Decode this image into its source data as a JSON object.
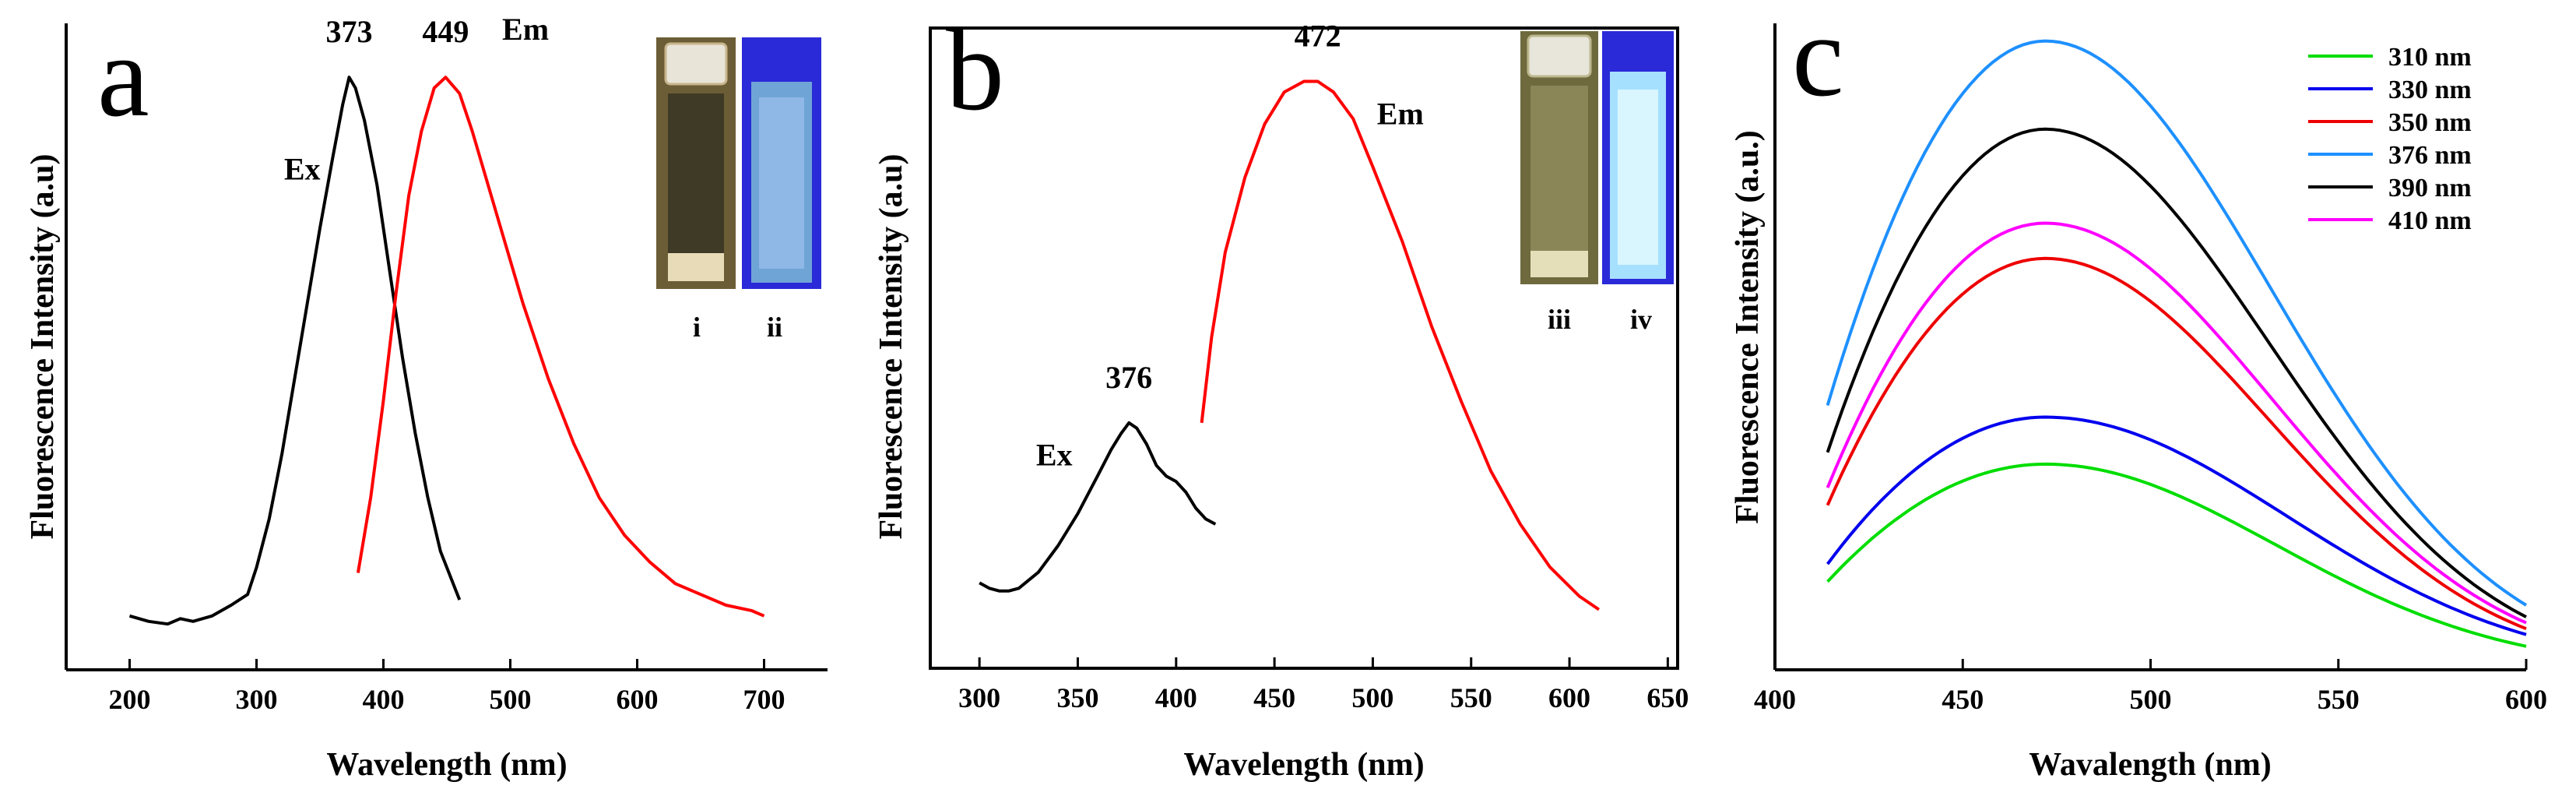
{
  "chart_data": [
    {
      "type": "line",
      "panel": "a",
      "xlabel": "Wavelength (nm)",
      "ylabel": "Fluorescence Intensity (a.u)",
      "xlim": [
        150,
        750
      ],
      "ylim": [
        -0.1,
        1.1
      ],
      "x_ticks": [
        200,
        300,
        400,
        500,
        600,
        700
      ],
      "y_ticks_shown": false,
      "series": [
        {
          "name": "Ex",
          "color": "#000000",
          "x": [
            200,
            215,
            230,
            240,
            250,
            265,
            280,
            293,
            300,
            310,
            320,
            330,
            340,
            350,
            360,
            368,
            373,
            378,
            385,
            395,
            405,
            415,
            425,
            435,
            445,
            455,
            460
          ],
          "y": [
            0.0,
            -0.01,
            -0.015,
            -0.005,
            -0.01,
            0.0,
            0.02,
            0.04,
            0.09,
            0.18,
            0.3,
            0.44,
            0.58,
            0.72,
            0.85,
            0.95,
            1.0,
            0.98,
            0.92,
            0.8,
            0.64,
            0.48,
            0.34,
            0.22,
            0.12,
            0.06,
            0.03
          ]
        },
        {
          "name": "Em",
          "color": "#ff0000",
          "x": [
            380,
            390,
            400,
            410,
            420,
            430,
            440,
            449,
            460,
            470,
            480,
            495,
            510,
            530,
            550,
            570,
            590,
            610,
            630,
            650,
            670,
            690,
            700
          ],
          "y": [
            0.08,
            0.22,
            0.4,
            0.6,
            0.78,
            0.9,
            0.98,
            1.0,
            0.97,
            0.9,
            0.82,
            0.7,
            0.58,
            0.44,
            0.32,
            0.22,
            0.15,
            0.1,
            0.06,
            0.04,
            0.02,
            0.01,
            0.0
          ]
        }
      ],
      "annotations": [
        {
          "text": "373",
          "x": 373,
          "y": 1.0
        },
        {
          "text": "449",
          "x": 449,
          "y": 1.0
        },
        {
          "text": "Ex",
          "x": 336,
          "y": 0.81
        },
        {
          "text": "Em",
          "x": 512,
          "y": 1.07
        }
      ],
      "inset": {
        "labels": [
          "i",
          "ii"
        ],
        "vial_colors": [
          "#c8b489",
          "#8fb8e6"
        ],
        "vial_bg": [
          "#6b5d35",
          "#2a2ad8"
        ]
      }
    },
    {
      "type": "line",
      "panel": "b",
      "xlabel": "Wavelength (nm)",
      "ylabel": "Fluorescence Intensity (a.u)",
      "xlim": [
        275,
        655
      ],
      "ylim": [
        -0.1,
        1.1
      ],
      "x_ticks": [
        300,
        350,
        400,
        450,
        500,
        550,
        600,
        650
      ],
      "y_ticks_shown": false,
      "series": [
        {
          "name": "Ex",
          "color": "#000000",
          "x": [
            300,
            305,
            310,
            315,
            320,
            330,
            340,
            350,
            360,
            367,
            372,
            376,
            380,
            385,
            390,
            395,
            400,
            405,
            410,
            415,
            420
          ],
          "y": [
            0.06,
            0.05,
            0.045,
            0.045,
            0.05,
            0.08,
            0.13,
            0.19,
            0.26,
            0.31,
            0.34,
            0.36,
            0.35,
            0.32,
            0.28,
            0.26,
            0.25,
            0.23,
            0.2,
            0.18,
            0.17
          ]
        },
        {
          "name": "Em",
          "color": "#ff0000",
          "x": [
            413,
            418,
            425,
            435,
            445,
            455,
            465,
            472,
            480,
            490,
            500,
            515,
            530,
            545,
            560,
            575,
            590,
            605,
            615
          ],
          "y": [
            0.36,
            0.52,
            0.68,
            0.82,
            0.92,
            0.98,
            1.0,
            1.0,
            0.98,
            0.93,
            0.84,
            0.7,
            0.54,
            0.4,
            0.27,
            0.17,
            0.09,
            0.035,
            0.01
          ]
        }
      ],
      "annotations": [
        {
          "text": "376",
          "x": 376,
          "y": 0.36
        },
        {
          "text": "472",
          "x": 472,
          "y": 1.0
        },
        {
          "text": "Ex",
          "x": 338,
          "y": 0.28
        },
        {
          "text": "Em",
          "x": 514,
          "y": 0.92
        }
      ],
      "inset": {
        "labels": [
          "iii",
          "iv"
        ],
        "vial_colors": [
          "#c9c59b",
          "#c9f0ff"
        ],
        "vial_bg": [
          "#6e6a3e",
          "#2a2ad8"
        ]
      }
    },
    {
      "type": "line",
      "panel": "c",
      "xlabel": "Wavalength (nm)",
      "ylabel": "Fluorescence Intensity (a.u.)",
      "xlim": [
        400,
        600
      ],
      "ylim": [
        0,
        1.1
      ],
      "x_ticks": [
        400,
        450,
        500,
        550,
        600
      ],
      "y_ticks_shown": false,
      "legend_position": "top-right",
      "peak_x": 472,
      "series": [
        {
          "name": "310 nm",
          "color": "#00dd00",
          "start": 0.15,
          "peak": 0.35,
          "end": 0.04
        },
        {
          "name": "330 nm",
          "color": "#0000ee",
          "start": 0.18,
          "peak": 0.43,
          "end": 0.06
        },
        {
          "name": "350 nm",
          "color": "#ee0000",
          "start": 0.28,
          "peak": 0.7,
          "end": 0.07
        },
        {
          "name": "376 nm",
          "color": "#1e90ff",
          "start": 0.45,
          "peak": 1.07,
          "end": 0.11
        },
        {
          "name": "390 nm",
          "color": "#000000",
          "start": 0.37,
          "peak": 0.92,
          "end": 0.09
        },
        {
          "name": "410 nm",
          "color": "#ff00ff",
          "start": 0.31,
          "peak": 0.76,
          "end": 0.08
        }
      ]
    }
  ]
}
